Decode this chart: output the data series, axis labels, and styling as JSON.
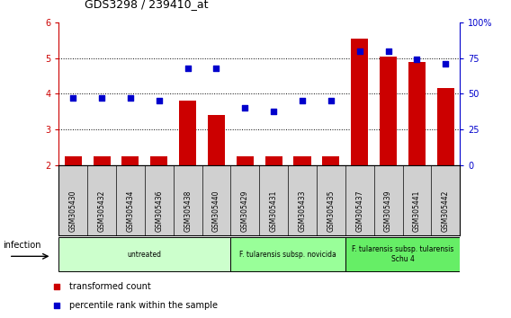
{
  "title": "GDS3298 / 239410_at",
  "samples": [
    "GSM305430",
    "GSM305432",
    "GSM305434",
    "GSM305436",
    "GSM305438",
    "GSM305440",
    "GSM305429",
    "GSM305431",
    "GSM305433",
    "GSM305435",
    "GSM305437",
    "GSM305439",
    "GSM305441",
    "GSM305442"
  ],
  "bar_values": [
    2.25,
    2.25,
    2.25,
    2.25,
    3.8,
    3.4,
    2.25,
    2.25,
    2.25,
    2.25,
    5.55,
    5.05,
    4.9,
    4.15
  ],
  "dot_percentiles": [
    47,
    47,
    47,
    45,
    68,
    68,
    40,
    38,
    45,
    45,
    80,
    80,
    74,
    71
  ],
  "ylim_left": [
    2,
    6
  ],
  "ylim_right": [
    0,
    100
  ],
  "yticks_left": [
    2,
    3,
    4,
    5,
    6
  ],
  "yticks_right": [
    0,
    25,
    50,
    75,
    100
  ],
  "ytick_labels_right": [
    "0",
    "25",
    "50",
    "75",
    "100%"
  ],
  "bar_color": "#cc0000",
  "dot_color": "#0000cc",
  "groups": [
    {
      "label": "untreated",
      "start": 0,
      "end": 5,
      "color": "#ccffcc"
    },
    {
      "label": "F. tularensis subsp. novicida",
      "start": 6,
      "end": 9,
      "color": "#99ff99"
    },
    {
      "label": "F. tularensis subsp. tularensis\nSchu 4",
      "start": 10,
      "end": 13,
      "color": "#66ee66"
    }
  ],
  "xlabel_infection": "infection",
  "legend_bar": "transformed count",
  "legend_dot": "percentile rank within the sample",
  "bg_color": "#ffffff",
  "tick_bg": "#d0d0d0"
}
